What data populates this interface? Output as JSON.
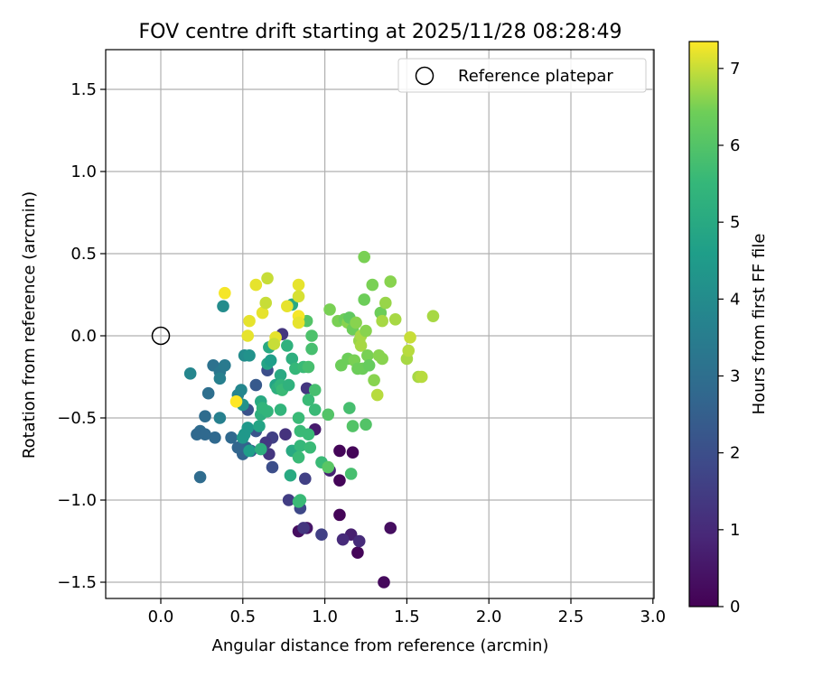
{
  "chart_data": {
    "type": "scatter",
    "title": "FOV centre drift starting at 2025/11/28 08:28:49",
    "xlabel": "Angular distance from reference (arcmin)",
    "ylabel": "Rotation from reference (arcmin)",
    "xlim": [
      -0.33,
      3.0
    ],
    "ylim": [
      -1.6,
      1.73
    ],
    "xticks": [
      0.0,
      0.5,
      1.0,
      1.5,
      2.0,
      2.5,
      3.0
    ],
    "xtick_labels": [
      "0.0",
      "0.5",
      "1.0",
      "1.5",
      "2.0",
      "2.5",
      "3.0"
    ],
    "yticks": [
      -1.5,
      -1.0,
      -0.5,
      0.0,
      0.5,
      1.0,
      1.5
    ],
    "ytick_labels": [
      "−1.5",
      "−1.0",
      "−0.5",
      "0.0",
      "0.5",
      "1.0",
      "1.5"
    ],
    "grid": true,
    "legend": {
      "position": "top-right",
      "entries": [
        {
          "label": "Reference platepar",
          "marker": "open-circle"
        }
      ]
    },
    "reference_point": {
      "x": 0.0,
      "y": 0.0
    },
    "colorbar": {
      "label": "Hours from first FF file",
      "min": 0,
      "max": 7.35,
      "ticks": [
        0,
        1,
        2,
        3,
        4,
        5,
        6,
        7
      ],
      "tick_labels": [
        "0",
        "1",
        "2",
        "3",
        "4",
        "5",
        "6",
        "7"
      ],
      "colormap": "viridis"
    },
    "points": [
      {
        "x": 1.09,
        "y": -0.7,
        "h": 0.1
      },
      {
        "x": 1.17,
        "y": -0.71,
        "h": 0.1
      },
      {
        "x": 1.09,
        "y": -0.88,
        "h": 0.1
      },
      {
        "x": 1.09,
        "y": -1.09,
        "h": 0.1
      },
      {
        "x": 1.2,
        "y": -1.32,
        "h": 0.1
      },
      {
        "x": 1.36,
        "y": -1.5,
        "h": 0.2
      },
      {
        "x": 1.4,
        "y": -1.17,
        "h": 0.3
      },
      {
        "x": 0.84,
        "y": -1.19,
        "h": 0.3
      },
      {
        "x": 0.89,
        "y": -1.17,
        "h": 0.5
      },
      {
        "x": 1.16,
        "y": -1.21,
        "h": 0.7
      },
      {
        "x": 1.11,
        "y": -1.24,
        "h": 1.0
      },
      {
        "x": 1.21,
        "y": -1.25,
        "h": 1.0
      },
      {
        "x": 0.87,
        "y": -1.17,
        "h": 1.3
      },
      {
        "x": 0.98,
        "y": -1.21,
        "h": 1.6
      },
      {
        "x": 0.78,
        "y": -1.0,
        "h": 1.5
      },
      {
        "x": 0.85,
        "y": -1.05,
        "h": 1.8
      },
      {
        "x": 0.88,
        "y": -0.87,
        "h": 1.6
      },
      {
        "x": 0.94,
        "y": -0.57,
        "h": 0.6
      },
      {
        "x": 0.76,
        "y": -0.6,
        "h": 1.2
      },
      {
        "x": 0.68,
        "y": -0.62,
        "h": 1.6
      },
      {
        "x": 0.64,
        "y": -0.65,
        "h": 1.4
      },
      {
        "x": 0.66,
        "y": -0.72,
        "h": 1.3
      },
      {
        "x": 0.68,
        "y": -0.8,
        "h": 2.0
      },
      {
        "x": 1.03,
        "y": -0.82,
        "h": 0.8
      },
      {
        "x": 0.89,
        "y": -0.32,
        "h": 1.3
      },
      {
        "x": 0.74,
        "y": 0.01,
        "h": 1.3
      },
      {
        "x": 0.65,
        "y": -0.21,
        "h": 2.0
      },
      {
        "x": 0.58,
        "y": -0.3,
        "h": 2.3
      },
      {
        "x": 0.53,
        "y": -0.45,
        "h": 2.1
      },
      {
        "x": 0.58,
        "y": -0.58,
        "h": 2.2
      },
      {
        "x": 0.55,
        "y": -0.7,
        "h": 2.2
      },
      {
        "x": 0.5,
        "y": -0.72,
        "h": 2.6
      },
      {
        "x": 0.52,
        "y": -0.68,
        "h": 2.6
      },
      {
        "x": 0.47,
        "y": -0.68,
        "h": 2.7
      },
      {
        "x": 0.43,
        "y": -0.62,
        "h": 2.8
      },
      {
        "x": 0.33,
        "y": -0.62,
        "h": 2.8
      },
      {
        "x": 0.24,
        "y": -0.86,
        "h": 2.9
      },
      {
        "x": 0.27,
        "y": -0.49,
        "h": 2.9
      },
      {
        "x": 0.24,
        "y": -0.58,
        "h": 2.9
      },
      {
        "x": 0.22,
        "y": -0.6,
        "h": 2.8
      },
      {
        "x": 0.27,
        "y": -0.6,
        "h": 2.8
      },
      {
        "x": 0.29,
        "y": -0.35,
        "h": 3.0
      },
      {
        "x": 0.32,
        "y": -0.18,
        "h": 3.1
      },
      {
        "x": 0.36,
        "y": -0.22,
        "h": 3.3
      },
      {
        "x": 0.39,
        "y": -0.18,
        "h": 3.4
      },
      {
        "x": 0.36,
        "y": -0.26,
        "h": 3.6
      },
      {
        "x": 0.36,
        "y": -0.5,
        "h": 3.6
      },
      {
        "x": 0.18,
        "y": -0.23,
        "h": 3.8
      },
      {
        "x": 0.38,
        "y": 0.18,
        "h": 4.0
      },
      {
        "x": 0.47,
        "y": -0.36,
        "h": 3.7
      },
      {
        "x": 0.49,
        "y": -0.33,
        "h": 3.8
      },
      {
        "x": 0.51,
        "y": -0.12,
        "h": 4.0
      },
      {
        "x": 0.54,
        "y": -0.12,
        "h": 4.2
      },
      {
        "x": 0.5,
        "y": -0.42,
        "h": 4.2
      },
      {
        "x": 0.5,
        "y": -0.62,
        "h": 4.4
      },
      {
        "x": 0.51,
        "y": -0.6,
        "h": 4.4
      },
      {
        "x": 0.53,
        "y": -0.56,
        "h": 4.4
      },
      {
        "x": 0.54,
        "y": -0.7,
        "h": 4.6
      },
      {
        "x": 0.6,
        "y": -0.55,
        "h": 4.8
      },
      {
        "x": 0.61,
        "y": -0.4,
        "h": 5.0
      },
      {
        "x": 0.61,
        "y": -0.48,
        "h": 5.2
      },
      {
        "x": 0.61,
        "y": -0.69,
        "h": 5.2
      },
      {
        "x": 0.62,
        "y": -0.44,
        "h": 5.4
      },
      {
        "x": 0.65,
        "y": -0.46,
        "h": 5.4
      },
      {
        "x": 0.65,
        "y": -0.17,
        "h": 4.8
      },
      {
        "x": 0.66,
        "y": -0.07,
        "h": 5.0
      },
      {
        "x": 0.67,
        "y": -0.15,
        "h": 4.6
      },
      {
        "x": 0.7,
        "y": -0.3,
        "h": 4.8
      },
      {
        "x": 0.71,
        "y": -0.32,
        "h": 5.2
      },
      {
        "x": 0.73,
        "y": -0.24,
        "h": 5.0
      },
      {
        "x": 0.73,
        "y": -0.3,
        "h": 5.4
      },
      {
        "x": 0.73,
        "y": -0.45,
        "h": 5.4
      },
      {
        "x": 0.74,
        "y": -0.33,
        "h": 5.6
      },
      {
        "x": 0.77,
        "y": -0.06,
        "h": 5.3
      },
      {
        "x": 0.78,
        "y": -0.3,
        "h": 5.3
      },
      {
        "x": 0.79,
        "y": -0.85,
        "h": 5.0
      },
      {
        "x": 0.8,
        "y": 0.19,
        "h": 5.0
      },
      {
        "x": 0.8,
        "y": -0.14,
        "h": 5.2
      },
      {
        "x": 0.8,
        "y": -0.7,
        "h": 5.0
      },
      {
        "x": 0.82,
        "y": -0.2,
        "h": 5.5
      },
      {
        "x": 0.84,
        "y": -0.5,
        "h": 5.6
      },
      {
        "x": 0.85,
        "y": -0.58,
        "h": 5.6
      },
      {
        "x": 0.85,
        "y": -0.67,
        "h": 5.5
      },
      {
        "x": 0.84,
        "y": -0.74,
        "h": 5.6
      },
      {
        "x": 0.85,
        "y": -1.0,
        "h": 5.6
      },
      {
        "x": 0.84,
        "y": -1.01,
        "h": 5.6
      },
      {
        "x": 0.87,
        "y": -0.19,
        "h": 5.6
      },
      {
        "x": 0.9,
        "y": -0.19,
        "h": 5.8
      },
      {
        "x": 0.9,
        "y": -0.39,
        "h": 5.6
      },
      {
        "x": 0.9,
        "y": -0.6,
        "h": 5.6
      },
      {
        "x": 0.91,
        "y": -0.68,
        "h": 5.6
      },
      {
        "x": 0.92,
        "y": -0.08,
        "h": 5.8
      },
      {
        "x": 0.92,
        "y": 0.0,
        "h": 5.9
      },
      {
        "x": 0.94,
        "y": -0.45,
        "h": 5.6
      },
      {
        "x": 0.94,
        "y": -0.33,
        "h": 5.8
      },
      {
        "x": 0.89,
        "y": 0.09,
        "h": 6.0
      },
      {
        "x": 0.98,
        "y": -0.77,
        "h": 5.6
      },
      {
        "x": 1.02,
        "y": -0.48,
        "h": 6.0
      },
      {
        "x": 1.02,
        "y": -0.8,
        "h": 6.1
      },
      {
        "x": 1.03,
        "y": 0.16,
        "h": 6.5
      },
      {
        "x": 1.08,
        "y": 0.09,
        "h": 6.5
      },
      {
        "x": 1.1,
        "y": -0.18,
        "h": 6.4
      },
      {
        "x": 1.12,
        "y": 0.1,
        "h": 6.4
      },
      {
        "x": 1.14,
        "y": 0.08,
        "h": 6.6
      },
      {
        "x": 1.14,
        "y": -0.14,
        "h": 6.4
      },
      {
        "x": 1.15,
        "y": 0.11,
        "h": 6.2
      },
      {
        "x": 1.16,
        "y": -0.84,
        "h": 5.8
      },
      {
        "x": 1.15,
        "y": -0.44,
        "h": 5.8
      },
      {
        "x": 1.17,
        "y": -0.55,
        "h": 6.0
      },
      {
        "x": 1.17,
        "y": 0.04,
        "h": 6.4
      },
      {
        "x": 1.18,
        "y": -0.15,
        "h": 6.5
      },
      {
        "x": 1.19,
        "y": 0.08,
        "h": 6.6
      },
      {
        "x": 1.2,
        "y": -0.2,
        "h": 6.4
      },
      {
        "x": 1.21,
        "y": -0.03,
        "h": 6.7
      },
      {
        "x": 1.22,
        "y": -0.06,
        "h": 6.8
      },
      {
        "x": 1.22,
        "y": 0.0,
        "h": 6.8
      },
      {
        "x": 1.23,
        "y": -0.2,
        "h": 6.4
      },
      {
        "x": 1.24,
        "y": 0.22,
        "h": 6.4
      },
      {
        "x": 1.24,
        "y": 0.48,
        "h": 6.5
      },
      {
        "x": 1.25,
        "y": -0.54,
        "h": 6.0
      },
      {
        "x": 1.25,
        "y": 0.03,
        "h": 6.6
      },
      {
        "x": 1.26,
        "y": -0.12,
        "h": 6.5
      },
      {
        "x": 1.27,
        "y": -0.18,
        "h": 6.3
      },
      {
        "x": 1.29,
        "y": 0.31,
        "h": 6.5
      },
      {
        "x": 1.3,
        "y": -0.27,
        "h": 6.6
      },
      {
        "x": 1.32,
        "y": -0.36,
        "h": 6.9
      },
      {
        "x": 1.33,
        "y": -0.12,
        "h": 6.6
      },
      {
        "x": 1.34,
        "y": 0.14,
        "h": 6.4
      },
      {
        "x": 1.35,
        "y": -0.14,
        "h": 6.6
      },
      {
        "x": 1.35,
        "y": 0.09,
        "h": 6.8
      },
      {
        "x": 1.37,
        "y": 0.2,
        "h": 6.7
      },
      {
        "x": 1.4,
        "y": 0.33,
        "h": 6.6
      },
      {
        "x": 1.43,
        "y": 0.1,
        "h": 6.8
      },
      {
        "x": 1.5,
        "y": -0.14,
        "h": 6.8
      },
      {
        "x": 1.51,
        "y": -0.09,
        "h": 6.9
      },
      {
        "x": 1.52,
        "y": -0.01,
        "h": 7.0
      },
      {
        "x": 1.57,
        "y": -0.25,
        "h": 6.8
      },
      {
        "x": 1.59,
        "y": -0.25,
        "h": 6.9
      },
      {
        "x": 1.66,
        "y": 0.12,
        "h": 6.8
      },
      {
        "x": 0.39,
        "y": 0.26,
        "h": 7.3
      },
      {
        "x": 0.53,
        "y": 0.0,
        "h": 7.2
      },
      {
        "x": 0.54,
        "y": 0.09,
        "h": 7.2
      },
      {
        "x": 0.58,
        "y": 0.31,
        "h": 7.2
      },
      {
        "x": 0.62,
        "y": 0.14,
        "h": 7.2
      },
      {
        "x": 0.64,
        "y": 0.2,
        "h": 7.0
      },
      {
        "x": 0.65,
        "y": 0.35,
        "h": 7.0
      },
      {
        "x": 0.7,
        "y": -0.01,
        "h": 7.2
      },
      {
        "x": 0.69,
        "y": -0.05,
        "h": 7.0
      },
      {
        "x": 0.77,
        "y": 0.18,
        "h": 7.2
      },
      {
        "x": 0.84,
        "y": 0.31,
        "h": 7.2
      },
      {
        "x": 0.84,
        "y": 0.24,
        "h": 7.1
      },
      {
        "x": 0.84,
        "y": 0.12,
        "h": 7.3
      },
      {
        "x": 0.84,
        "y": 0.08,
        "h": 7.2
      },
      {
        "x": 0.46,
        "y": -0.4,
        "h": 7.4
      }
    ]
  }
}
